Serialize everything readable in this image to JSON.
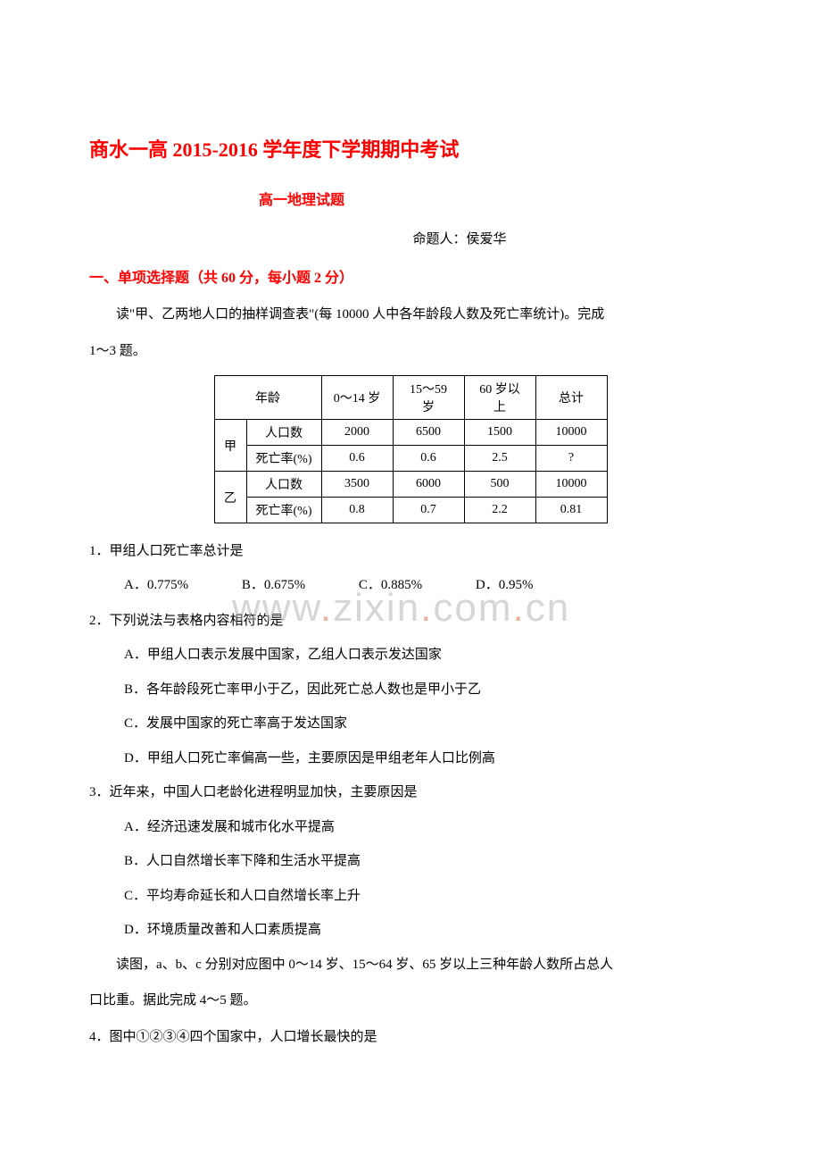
{
  "title": "商水一高 2015-2016 学年度下学期期中考试",
  "subtitle": "高一地理试题",
  "author": "命题人：侯爱华",
  "section": "一、单项选择题（共 60 分，每小题 2 分）",
  "intro1": "读\"甲、乙两地人口的抽样调查表\"(每 10000 人中各年龄段人数及死亡率统计)。完成",
  "intro2": "1～3 题。",
  "table": {
    "header": [
      "年龄",
      "0～14 岁",
      "15～59 岁",
      "60 岁以上",
      "总计"
    ],
    "rows": [
      {
        "group": "甲",
        "sub": [
          {
            "label": "人口数",
            "cells": [
              "2000",
              "6500",
              "1500",
              "10000"
            ]
          },
          {
            "label": "死亡率(%)",
            "cells": [
              "0.6",
              "0.6",
              "2.5",
              "?"
            ]
          }
        ]
      },
      {
        "group": "乙",
        "sub": [
          {
            "label": "人口数",
            "cells": [
              "3500",
              "6000",
              "500",
              "10000"
            ]
          },
          {
            "label": "死亡率(%)",
            "cells": [
              "0.8",
              "0.7",
              "2.2",
              "0.81"
            ]
          }
        ]
      }
    ]
  },
  "q1": {
    "stem": "1．甲组人口死亡率总计是",
    "opts": {
      "a": "A．0.775%",
      "b": "B．0.675%",
      "c": "C．0.885%",
      "d": "D．0.95%"
    }
  },
  "q2": {
    "stem": "2．下列说法与表格内容相符的是",
    "a": "A．甲组人口表示发展中国家，乙组人口表示发达国家",
    "b": "B．各年龄段死亡率甲小于乙，因此死亡总人数也是甲小于乙",
    "c": "C．发展中国家的死亡率高于发达国家",
    "d": "D．甲组人口死亡率偏高一些，主要原因是甲组老年人口比例高"
  },
  "q3": {
    "stem": "3．近年来，中国人口老龄化进程明显加快，主要原因是",
    "a": "A．经济迅速发展和城市化水平提高",
    "b": "B．人口自然增长率下降和生活水平提高",
    "c": "C．平均寿命延长和人口自然增长率上升",
    "d": "D．环境质量改善和人口素质提高"
  },
  "intro3": "读图，a、b、c 分别对应图中 0～14 岁、15～64 岁、65 岁以上三种年龄人数所占总人",
  "intro4": "口比重。据此完成 4～5 题。",
  "q4": {
    "stem": "4．图中①②③④四个国家中，人口增长最快的是"
  },
  "watermark": {
    "pre": "www",
    "mid1": "zixin",
    "mid2": "com",
    "end": "cn"
  },
  "colors": {
    "accent": "#ff0000",
    "text": "#000000",
    "bg": "#ffffff",
    "border": "#000000"
  }
}
